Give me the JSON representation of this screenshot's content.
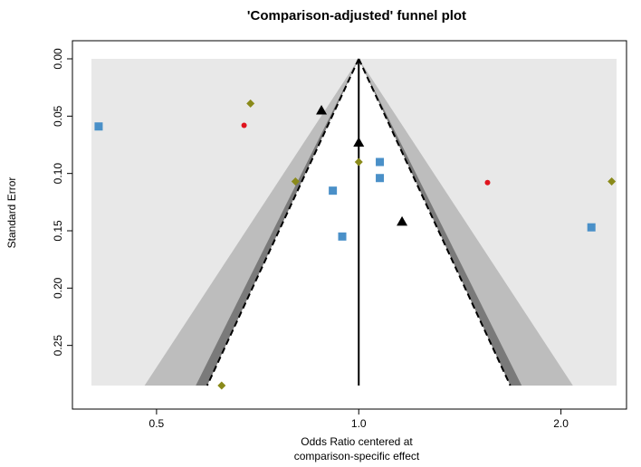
{
  "chart_data": {
    "type": "scatter",
    "title": "'Comparison-adjusted' funnel plot",
    "xlabel_line1": "Odds Ratio centered at",
    "xlabel_line2": "comparison-specific effect",
    "ylabel": "Standard Error",
    "x_scale": "log",
    "xlim": [
      0.4,
      2.42
    ],
    "ylim": [
      0,
      0.285
    ],
    "y_reversed": true,
    "x_ticks": [
      {
        "value": 0.5,
        "label": "0.5"
      },
      {
        "value": 1.0,
        "label": "1.0"
      },
      {
        "value": 2.0,
        "label": "2.0"
      }
    ],
    "y_ticks": [
      {
        "value": 0.0,
        "label": "0.00"
      },
      {
        "value": 0.05,
        "label": "0.05"
      },
      {
        "value": 0.1,
        "label": "0.10"
      },
      {
        "value": 0.15,
        "label": "0.15"
      },
      {
        "value": 0.2,
        "label": "0.20"
      },
      {
        "value": 0.25,
        "label": "0.25"
      }
    ],
    "funnel": {
      "center_or": 1.0,
      "outer_band_z": 2.576,
      "inner_band_z": 1.96,
      "dashed_z": 1.96,
      "outer_band_color": "#bdbdbd",
      "inner_band_color": "#7a7a7a",
      "background_color": "#e8e8e8"
    },
    "series": [
      {
        "shape": "square",
        "color": "#4a90c8",
        "points": [
          {
            "x": 0.41,
            "y": 0.059
          },
          {
            "x": 0.915,
            "y": 0.115
          },
          {
            "x": 0.945,
            "y": 0.155
          },
          {
            "x": 1.075,
            "y": 0.09
          },
          {
            "x": 1.075,
            "y": 0.104
          },
          {
            "x": 2.22,
            "y": 0.147
          }
        ]
      },
      {
        "shape": "triangle",
        "color": "#000000",
        "points": [
          {
            "x": 0.88,
            "y": 0.045
          },
          {
            "x": 1.0,
            "y": 0.073
          },
          {
            "x": 1.16,
            "y": 0.142
          }
        ]
      },
      {
        "shape": "diamond",
        "color": "#8a8a1a",
        "points": [
          {
            "x": 0.69,
            "y": 0.039
          },
          {
            "x": 0.805,
            "y": 0.107
          },
          {
            "x": 1.0,
            "y": 0.09
          },
          {
            "x": 2.38,
            "y": 0.107
          },
          {
            "x": 0.625,
            "y": 0.285
          }
        ]
      },
      {
        "shape": "circle",
        "color": "#e0141e",
        "points": [
          {
            "x": 0.675,
            "y": 0.058
          },
          {
            "x": 1.555,
            "y": 0.108
          }
        ]
      }
    ]
  }
}
